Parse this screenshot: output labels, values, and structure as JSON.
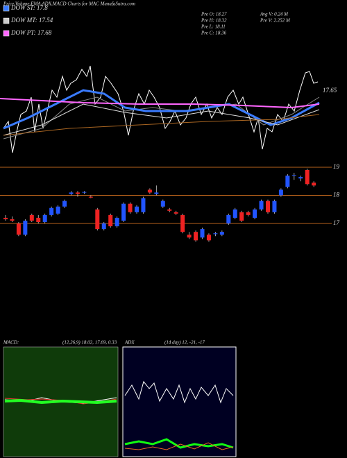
{
  "header": {
    "title": "Price,Volume,EMA,ADX,MACD Charts for MAC MunafaSutra.com"
  },
  "legend": [
    "DOW ST: 17.8",
    "DOW MT: 17.54",
    "DOW PT: 17.68"
  ],
  "legend_colors": [
    "#3a7bff",
    "#cccccc",
    "#ff66ff"
  ],
  "stats_left": [
    "Pre  O: 18.27",
    "Pre  H: 18.32",
    "Pre  L: 18.11",
    "Pre  C: 18.36"
  ],
  "stats_right": [
    "Avg V: 0.24  M",
    "Pre  V: 2.252  M"
  ],
  "ema_label": "17.65",
  "macd": {
    "label": "MACD:",
    "params": "(12,26,9) 18.02, 17.69, 0.33"
  },
  "adx": {
    "label": "ADX",
    "params": "(14 day) 12, -21, -17"
  },
  "chart_data": [
    {
      "type": "candlestick",
      "open": [
        17.2,
        17.15,
        17.0,
        16.6,
        17.3,
        17.2,
        17.05,
        17.3,
        17.35,
        17.6,
        18.05,
        18.1,
        18.1,
        17.95,
        17.5,
        16.8,
        17.3,
        16.9,
        17.1,
        17.7,
        17.4,
        17.4,
        18.2,
        18.05,
        17.6,
        17.5,
        17.4,
        17.3,
        16.6,
        16.7,
        16.5,
        16.6,
        16.62,
        16.6,
        17.0,
        17.2,
        17.4,
        17.4,
        17.2,
        17.5,
        17.8,
        17.4,
        18.0,
        18.3,
        18.7,
        18.6,
        18.9,
        18.45
      ],
      "high": [
        17.3,
        17.25,
        17.05,
        17.15,
        17.35,
        17.3,
        17.35,
        17.6,
        17.65,
        17.85,
        18.15,
        18.15,
        18.15,
        18.0,
        17.55,
        17.05,
        17.35,
        17.25,
        17.75,
        17.75,
        17.65,
        17.95,
        18.25,
        18.35,
        17.85,
        17.55,
        17.45,
        17.35,
        16.7,
        16.75,
        16.85,
        16.65,
        16.7,
        16.75,
        17.35,
        17.55,
        17.45,
        17.45,
        17.55,
        17.85,
        17.85,
        17.85,
        18.25,
        18.75,
        18.8,
        18.7,
        18.95,
        18.5
      ],
      "low": [
        17.1,
        17.05,
        16.55,
        16.55,
        17.05,
        17.0,
        17.0,
        17.25,
        17.3,
        17.55,
        18.0,
        17.95,
        18.05,
        17.9,
        16.75,
        16.75,
        16.85,
        16.85,
        17.05,
        17.35,
        17.35,
        17.35,
        18.05,
        18.0,
        17.55,
        17.4,
        17.3,
        16.65,
        16.45,
        16.35,
        16.45,
        16.35,
        16.55,
        16.55,
        16.95,
        17.15,
        17.05,
        17.25,
        17.15,
        17.45,
        17.35,
        17.35,
        17.95,
        18.25,
        18.55,
        18.5,
        18.35,
        18.3
      ],
      "close": [
        17.15,
        17.1,
        16.6,
        17.1,
        17.1,
        17.05,
        17.3,
        17.55,
        17.6,
        17.8,
        18.1,
        18.05,
        18.12,
        17.92,
        16.8,
        17.0,
        16.9,
        17.2,
        17.7,
        17.4,
        17.6,
        17.9,
        18.1,
        18.1,
        17.8,
        17.45,
        17.35,
        16.7,
        16.5,
        16.4,
        16.8,
        16.4,
        16.65,
        16.7,
        17.3,
        17.5,
        17.1,
        17.3,
        17.5,
        17.8,
        17.4,
        17.8,
        18.2,
        18.7,
        18.72,
        18.65,
        18.4,
        18.35
      ],
      "up_color": "#2255ff",
      "down_color": "#ee2222",
      "ylim": [
        15.57,
        19.27
      ],
      "yticks": [
        17,
        18,
        19
      ],
      "grid": true,
      "grid_color": "#b8621b"
    }
  ]
}
